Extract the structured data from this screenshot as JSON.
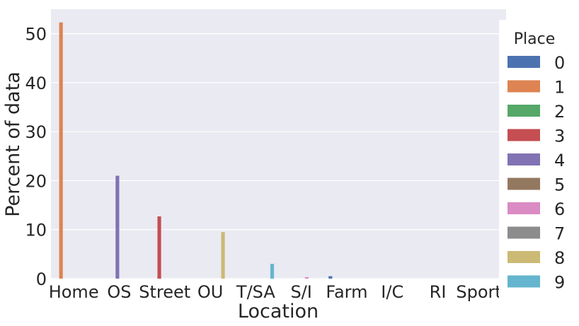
{
  "chart_data": {
    "type": "bar",
    "xlabel": "Location",
    "ylabel": "Percent of data",
    "ylim": [
      0,
      55
    ],
    "yticks": [
      "0",
      "10",
      "20",
      "30",
      "40",
      "50"
    ],
    "grid": true,
    "categories": [
      "Home",
      "OS",
      "Street",
      "OU",
      "T/SA",
      "S/I",
      "Farm",
      "I/C",
      "RI",
      "Sports"
    ],
    "legend": {
      "title": "Place",
      "placement": "right"
    },
    "series": [
      {
        "name": "0",
        "color": "#4c72b0",
        "values": [
          0,
          0,
          0,
          0,
          0,
          0,
          0.5,
          0,
          0,
          0
        ]
      },
      {
        "name": "1",
        "color": "#dd8452",
        "values": [
          52.3,
          0,
          0,
          0,
          0,
          0,
          0,
          0,
          0,
          0
        ]
      },
      {
        "name": "2",
        "color": "#55a868",
        "values": [
          0,
          0,
          0,
          0,
          0,
          0,
          0,
          0,
          0,
          0
        ]
      },
      {
        "name": "3",
        "color": "#c44e52",
        "values": [
          0,
          0,
          12.7,
          0,
          0,
          0,
          0,
          0,
          0,
          0
        ]
      },
      {
        "name": "4",
        "color": "#8172b3",
        "values": [
          0,
          21.0,
          0,
          0,
          0,
          0,
          0,
          0,
          0,
          0
        ]
      },
      {
        "name": "5",
        "color": "#937860",
        "values": [
          0,
          0,
          0,
          0,
          0,
          0,
          0,
          0,
          0,
          0
        ]
      },
      {
        "name": "6",
        "color": "#da8bc3",
        "values": [
          0,
          0,
          0,
          0,
          0,
          0.3,
          0,
          0,
          0,
          0
        ]
      },
      {
        "name": "7",
        "color": "#8c8c8c",
        "values": [
          0,
          0,
          0,
          0,
          0,
          0,
          0,
          0,
          0,
          0
        ]
      },
      {
        "name": "8",
        "color": "#ccb974",
        "values": [
          0,
          0,
          0,
          9.5,
          0,
          0,
          0,
          0,
          0,
          0
        ]
      },
      {
        "name": "9",
        "color": "#64b5cd",
        "values": [
          0,
          0,
          0,
          0,
          3.0,
          0,
          0,
          0,
          0,
          0
        ]
      }
    ]
  }
}
